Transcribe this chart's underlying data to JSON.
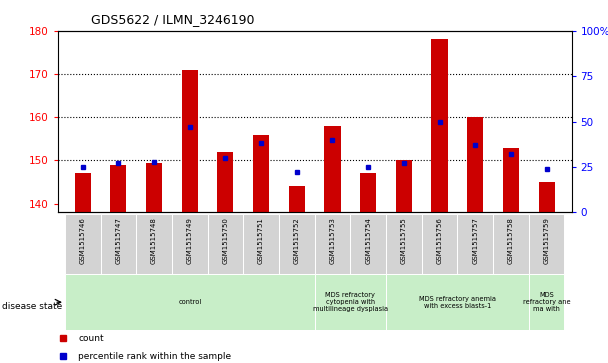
{
  "title": "GDS5622 / ILMN_3246190",
  "samples": [
    "GSM1515746",
    "GSM1515747",
    "GSM1515748",
    "GSM1515749",
    "GSM1515750",
    "GSM1515751",
    "GSM1515752",
    "GSM1515753",
    "GSM1515754",
    "GSM1515755",
    "GSM1515756",
    "GSM1515757",
    "GSM1515758",
    "GSM1515759"
  ],
  "count_values": [
    147,
    149,
    149.5,
    171,
    152,
    156,
    144,
    158,
    147,
    150,
    178,
    160,
    153,
    145
  ],
  "percentile_values": [
    25,
    27,
    28,
    47,
    30,
    38,
    22,
    40,
    25,
    27,
    50,
    37,
    32,
    24
  ],
  "ylim_left": [
    138,
    180
  ],
  "ylim_right": [
    0,
    100
  ],
  "yticks_left": [
    140,
    150,
    160,
    170,
    180
  ],
  "yticks_right": [
    0,
    25,
    50,
    75,
    100
  ],
  "bar_color": "#cc0000",
  "dot_color": "#0000cc",
  "groups": [
    {
      "label": "control",
      "start": 0,
      "end": 6
    },
    {
      "label": "MDS refractory\ncytopenia with\nmultilineage dysplasia",
      "start": 7,
      "end": 8
    },
    {
      "label": "MDS refractory anemia\nwith excess blasts-1",
      "start": 9,
      "end": 12
    },
    {
      "label": "MDS\nrefractory ane\nma with",
      "start": 13,
      "end": 13
    }
  ],
  "disease_state_label": "disease state",
  "legend_count_label": "count",
  "legend_percentile_label": "percentile rank within the sample"
}
